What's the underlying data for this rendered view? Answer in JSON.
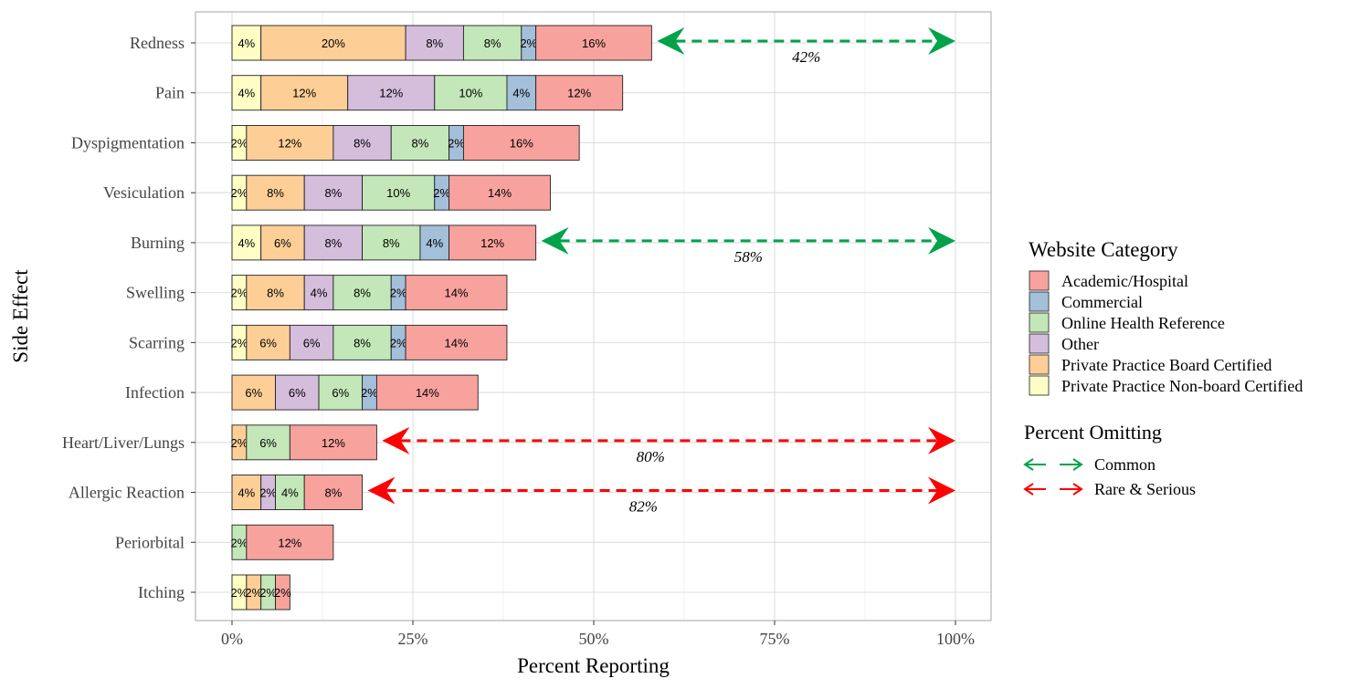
{
  "chart_data": {
    "type": "bar",
    "orientation": "horizontal",
    "stacked": true,
    "xlabel": "Percent Reporting",
    "ylabel": "Side Effect",
    "xlim": [
      0,
      100
    ],
    "x_ticks": [
      "0%",
      "25%",
      "50%",
      "75%",
      "100%"
    ],
    "x_tick_values": [
      0,
      25,
      50,
      75,
      100
    ],
    "grid": true,
    "legend_placement": "right",
    "categories": [
      "Redness",
      "Pain",
      "Dyspigmentation",
      "Vesiculation",
      "Burning",
      "Swelling",
      "Scarring",
      "Infection",
      "Heart/Liver/Lungs",
      "Allergic Reaction",
      "Periorbital",
      "Itching"
    ],
    "legend_title": "Website Category",
    "series": [
      {
        "name": "Private Practice Non-board Certified",
        "color": "#FFFFC5",
        "values": [
          4,
          4,
          2,
          2,
          4,
          2,
          2,
          0,
          0,
          0,
          0,
          2
        ]
      },
      {
        "name": "Private Practice Board Certified",
        "color": "#FDCF97",
        "values": [
          20,
          12,
          12,
          8,
          6,
          8,
          6,
          6,
          2,
          4,
          0,
          2
        ]
      },
      {
        "name": "Other",
        "color": "#D5BDDC",
        "values": [
          8,
          12,
          8,
          8,
          8,
          4,
          6,
          6,
          0,
          2,
          0,
          0
        ]
      },
      {
        "name": "Online Health Reference",
        "color": "#C3E7B8",
        "values": [
          8,
          10,
          8,
          10,
          8,
          8,
          8,
          6,
          6,
          4,
          2,
          2
        ]
      },
      {
        "name": "Commercial",
        "color": "#A4BFD9",
        "values": [
          2,
          4,
          2,
          2,
          4,
          2,
          2,
          2,
          0,
          0,
          0,
          0
        ]
      },
      {
        "name": "Academic/Hospital",
        "color": "#F8A29E",
        "values": [
          16,
          12,
          16,
          14,
          12,
          14,
          14,
          14,
          12,
          8,
          12,
          2
        ]
      }
    ],
    "legend_order": [
      "Academic/Hospital",
      "Commercial",
      "Online Health Reference",
      "Other",
      "Private Practice Board Certified",
      "Private Practice Non-board Certified"
    ],
    "omission_legend_title": "Percent Omitting",
    "omission_types": [
      {
        "name": "Common",
        "color": "#00A34A"
      },
      {
        "name": "Rare & Serious",
        "color": "#FF0000"
      }
    ],
    "annotations": [
      {
        "category": "Redness",
        "type": "Common",
        "from": 58,
        "to": 100,
        "label": "42%"
      },
      {
        "category": "Burning",
        "type": "Common",
        "from": 42,
        "to": 100,
        "label": "58%"
      },
      {
        "category": "Heart/Liver/Lungs",
        "type": "Rare & Serious",
        "from": 20,
        "to": 100,
        "label": "80%"
      },
      {
        "category": "Allergic Reaction",
        "type": "Rare & Serious",
        "from": 18,
        "to": 100,
        "label": "82%"
      }
    ]
  }
}
